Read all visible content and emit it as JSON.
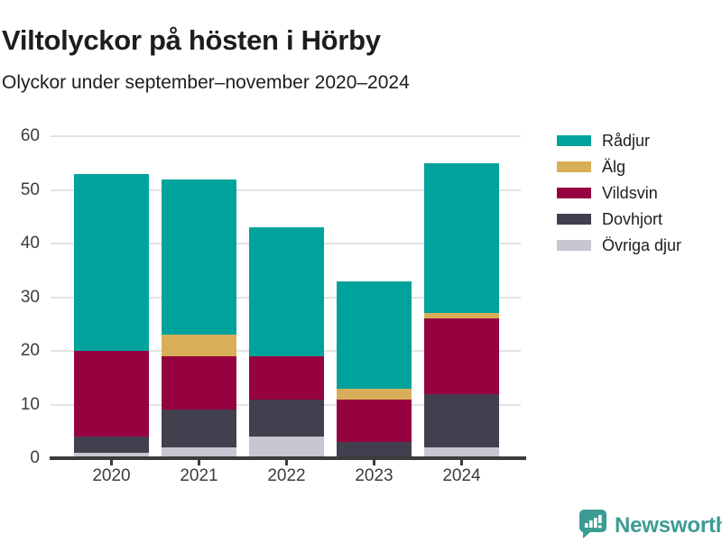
{
  "title": "Viltolyckor på hösten i Hörby",
  "subtitle": "Olyckor under september–november 2020–2024",
  "chart_data": {
    "type": "bar",
    "stacked": true,
    "title": "Viltolyckor på hösten i Hörby",
    "subtitle": "Olyckor under september–november 2020–2024",
    "categories": [
      "2020",
      "2021",
      "2022",
      "2023",
      "2024"
    ],
    "series": [
      {
        "name": "Rådjur",
        "color": "#00a39c",
        "values": [
          33,
          29,
          24,
          20,
          28
        ]
      },
      {
        "name": "Älg",
        "color": "#d9ae59",
        "values": [
          0,
          4,
          0,
          2,
          1
        ]
      },
      {
        "name": "Vildsvin",
        "color": "#960140",
        "values": [
          16,
          10,
          8,
          8,
          14
        ]
      },
      {
        "name": "Dovhjort",
        "color": "#42404e",
        "values": [
          3,
          7,
          7,
          3,
          10
        ]
      },
      {
        "name": "Övriga djur",
        "color": "#c7c7d1",
        "values": [
          1,
          2,
          4,
          0,
          2
        ]
      }
    ],
    "totals": [
      53,
      52,
      43,
      33,
      55
    ],
    "xlabel": "",
    "ylabel": "",
    "ylim": [
      0,
      60
    ],
    "yticks": [
      0,
      10,
      20,
      30,
      40,
      50,
      60
    ],
    "grid": true,
    "gridline_color": "#e3e3e3",
    "axis_color": "#3c3c3c",
    "legend_position": "right"
  },
  "branding": {
    "logo_text": "Newsworthy",
    "logo_color": "#3c9c94",
    "logo_icon": "bar-chart-speech-bubble-icon"
  }
}
